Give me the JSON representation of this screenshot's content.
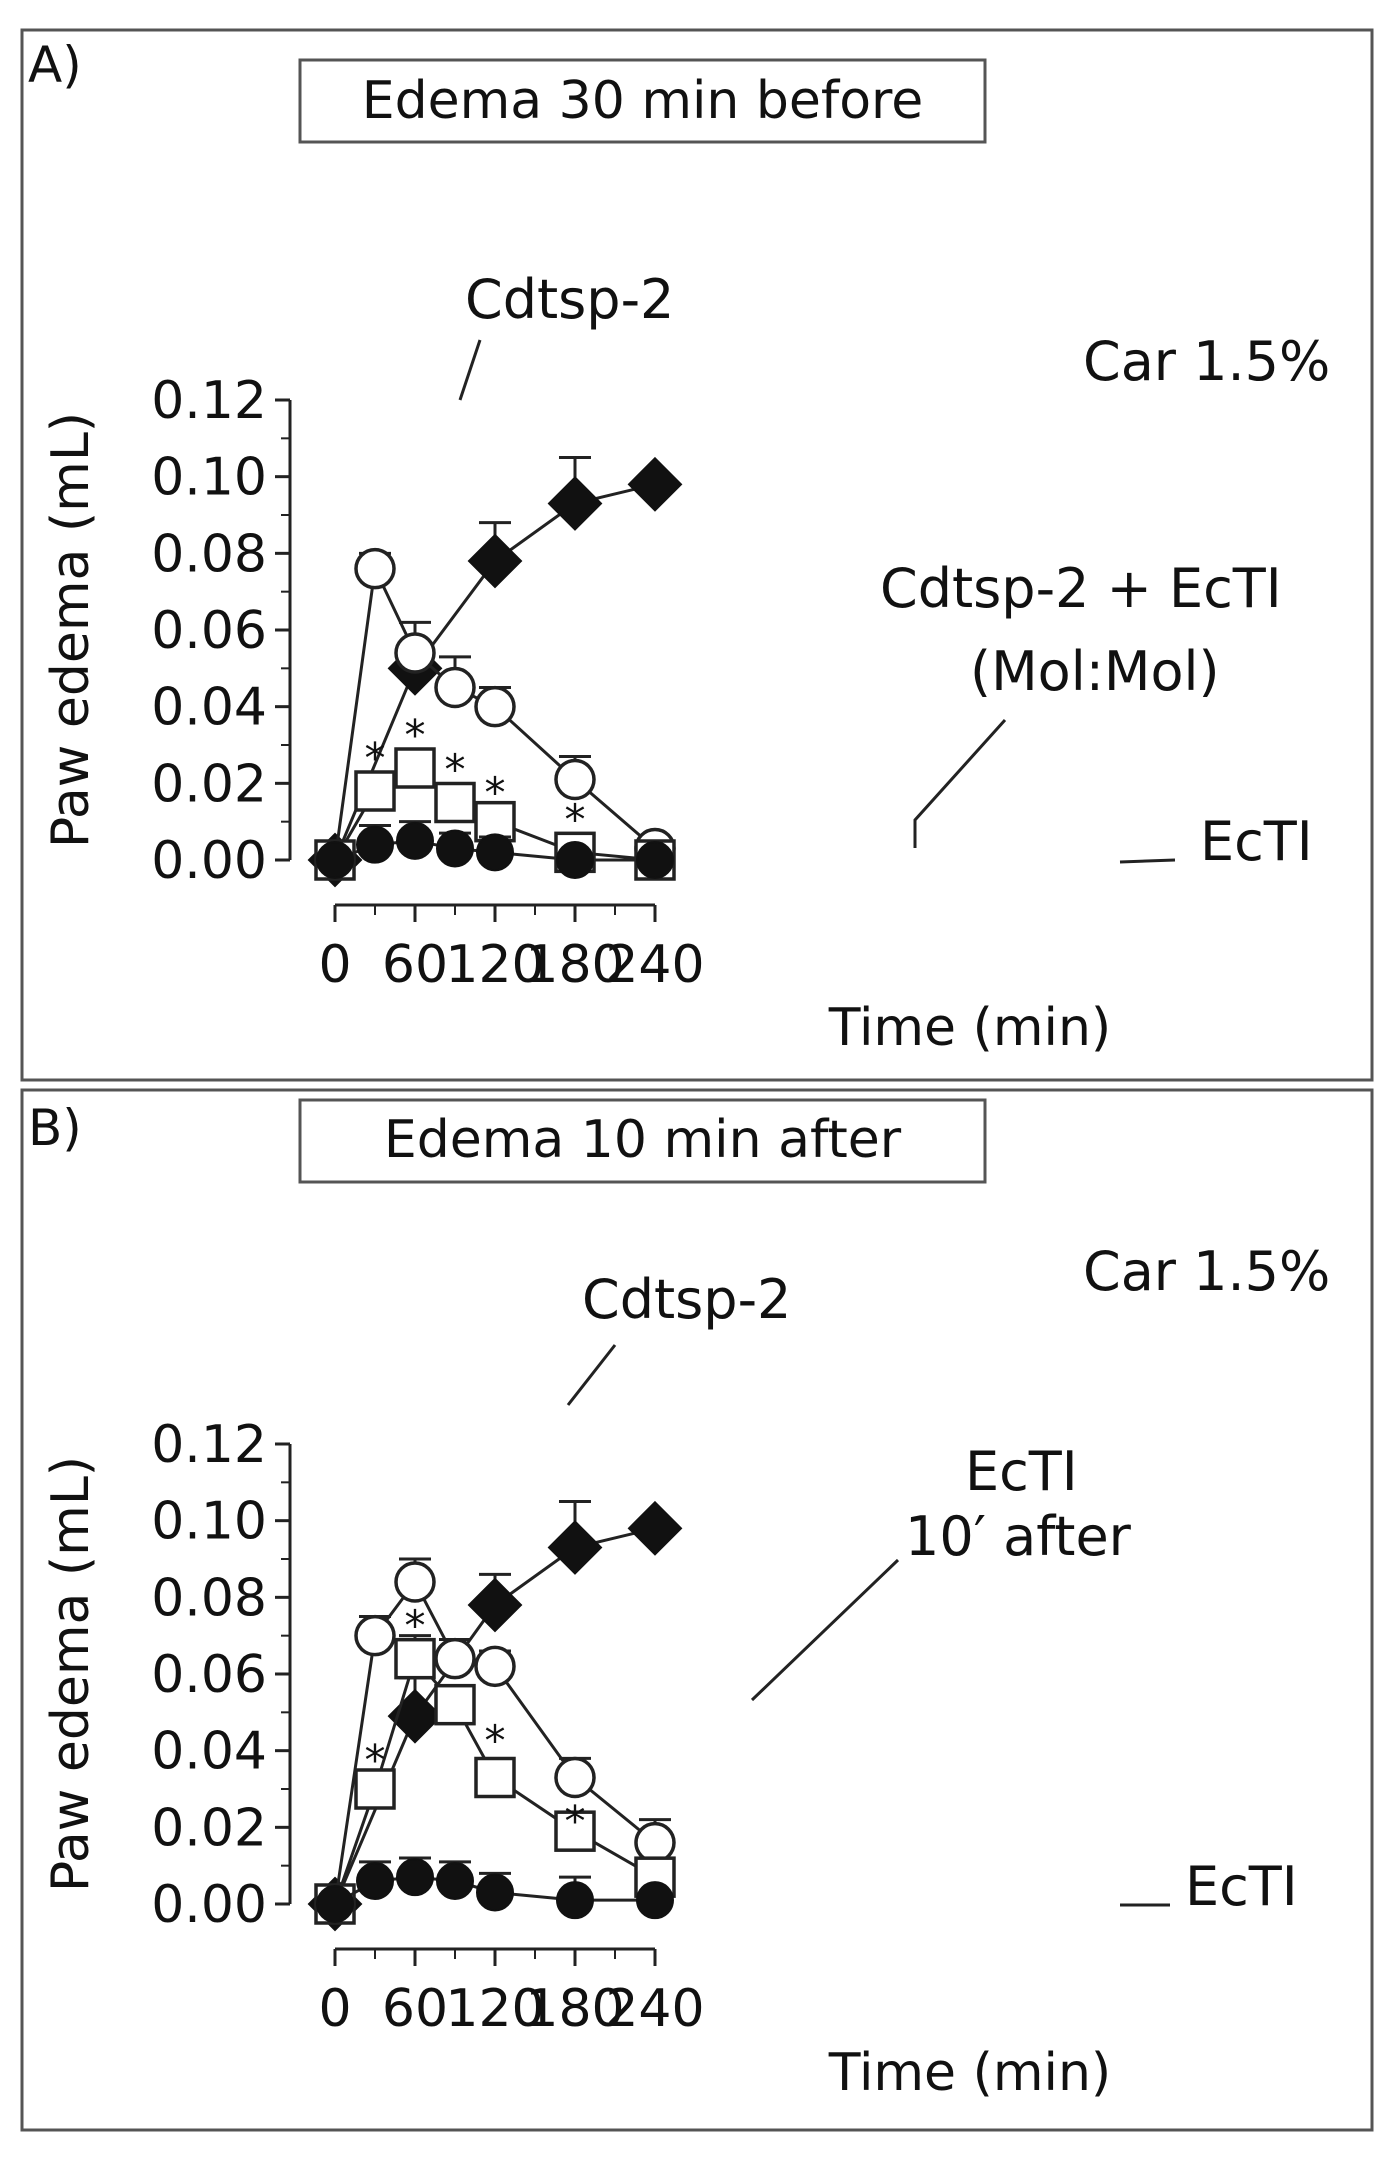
{
  "chart_data": [
    {
      "panel": "A)",
      "type": "line",
      "title": "Edema 30 min before",
      "xlabel": "Time (min)",
      "ylabel": "Paw edema (mL)",
      "xlim": [
        0,
        240
      ],
      "ylim": [
        0,
        0.12
      ],
      "xticks": [
        "0",
        "60",
        "120",
        "180",
        "240"
      ],
      "yticks": [
        "0.00",
        "0.02",
        "0.04",
        "0.06",
        "0.08",
        "0.10",
        "0.12"
      ],
      "series": [
        {
          "name": "Car 1.5%",
          "label": "Car 1.5%",
          "marker": "diamond-filled",
          "x": [
            0,
            60,
            120,
            180,
            240
          ],
          "values": [
            0.0,
            0.05,
            0.078,
            0.093,
            0.098
          ],
          "errors": [
            0.0,
            0.012,
            0.01,
            0.012,
            0.0
          ]
        },
        {
          "name": "Cdtsp-2",
          "label": "Cdtsp-2",
          "marker": "circle-open",
          "x": [
            0,
            30,
            60,
            90,
            120,
            180,
            240
          ],
          "values": [
            0.0,
            0.076,
            0.054,
            0.045,
            0.04,
            0.021,
            0.003
          ],
          "errors": [
            0.0,
            0.004,
            0.0,
            0.008,
            0.005,
            0.006,
            0.003
          ]
        },
        {
          "name": "Cdtsp-2 + EcTI (Mol:Mol)",
          "label": "Cdtsp-2 + EcTI",
          "sublabel": "(Mol:Mol)",
          "marker": "square-open",
          "x": [
            0,
            30,
            60,
            90,
            120,
            180,
            240
          ],
          "values": [
            0.0,
            0.018,
            0.024,
            0.015,
            0.01,
            0.002,
            0.0
          ],
          "errors": [
            0.0,
            0.004,
            0.004,
            0.004,
            0.004,
            0.003,
            0.0
          ]
        },
        {
          "name": "EcTI",
          "label": "EcTI",
          "marker": "circle-filled",
          "x": [
            0,
            30,
            60,
            90,
            120,
            180,
            240
          ],
          "values": [
            0.0,
            0.004,
            0.005,
            0.003,
            0.002,
            0.0,
            0.0
          ],
          "errors": [
            0.0,
            0.005,
            0.005,
            0.004,
            0.004,
            0.0,
            0.0
          ]
        }
      ],
      "significance": [
        {
          "marker": "*",
          "x": 30,
          "y": 0.027
        },
        {
          "marker": "*",
          "x": 60,
          "y": 0.033
        },
        {
          "marker": "*",
          "x": 90,
          "y": 0.024
        },
        {
          "marker": "*",
          "x": 120,
          "y": 0.018
        },
        {
          "marker": "*",
          "x": 180,
          "y": 0.011
        }
      ]
    },
    {
      "panel": "B)",
      "type": "line",
      "title": "Edema 10 min after",
      "xlabel": "Time (min)",
      "ylabel": "Paw edema (mL)",
      "xlim": [
        0,
        240
      ],
      "ylim": [
        0,
        0.12
      ],
      "xticks": [
        "0",
        "60",
        "120",
        "180",
        "240"
      ],
      "yticks": [
        "0.00",
        "0.02",
        "0.04",
        "0.06",
        "0.08",
        "0.10",
        "0.12"
      ],
      "series": [
        {
          "name": "Car 1.5%",
          "label": "Car 1.5%",
          "marker": "diamond-filled",
          "x": [
            0,
            60,
            120,
            180,
            240
          ],
          "values": [
            0.0,
            0.049,
            0.078,
            0.093,
            0.098
          ],
          "errors": [
            0.0,
            0.01,
            0.008,
            0.012,
            0.0
          ]
        },
        {
          "name": "Cdtsp-2",
          "label": "Cdtsp-2",
          "marker": "circle-open",
          "x": [
            0,
            30,
            60,
            90,
            120,
            180,
            240
          ],
          "values": [
            0.0,
            0.07,
            0.084,
            0.064,
            0.062,
            0.033,
            0.016
          ],
          "errors": [
            0.0,
            0.005,
            0.006,
            0.005,
            0.004,
            0.005,
            0.006
          ]
        },
        {
          "name": "EcTI 10′ after",
          "label": "EcTI",
          "sublabel": "10′ after",
          "marker": "square-open",
          "x": [
            0,
            30,
            60,
            90,
            120,
            180,
            240
          ],
          "values": [
            0.0,
            0.03,
            0.064,
            0.052,
            0.033,
            0.019,
            0.007
          ],
          "errors": [
            0.0,
            0.004,
            0.006,
            0.005,
            0.004,
            0.005,
            0.003
          ]
        },
        {
          "name": "EcTI",
          "label": "EcTI",
          "marker": "circle-filled",
          "x": [
            0,
            30,
            60,
            90,
            120,
            180,
            240
          ],
          "values": [
            0.0,
            0.006,
            0.007,
            0.006,
            0.003,
            0.001,
            0.001
          ],
          "errors": [
            0.0,
            0.005,
            0.005,
            0.005,
            0.005,
            0.006,
            0.0
          ]
        }
      ],
      "significance": [
        {
          "marker": "*",
          "x": 30,
          "y": 0.038
        },
        {
          "marker": "*",
          "x": 60,
          "y": 0.073
        },
        {
          "marker": "*",
          "x": 120,
          "y": 0.043
        },
        {
          "marker": "*",
          "x": 180,
          "y": 0.022
        }
      ]
    }
  ]
}
